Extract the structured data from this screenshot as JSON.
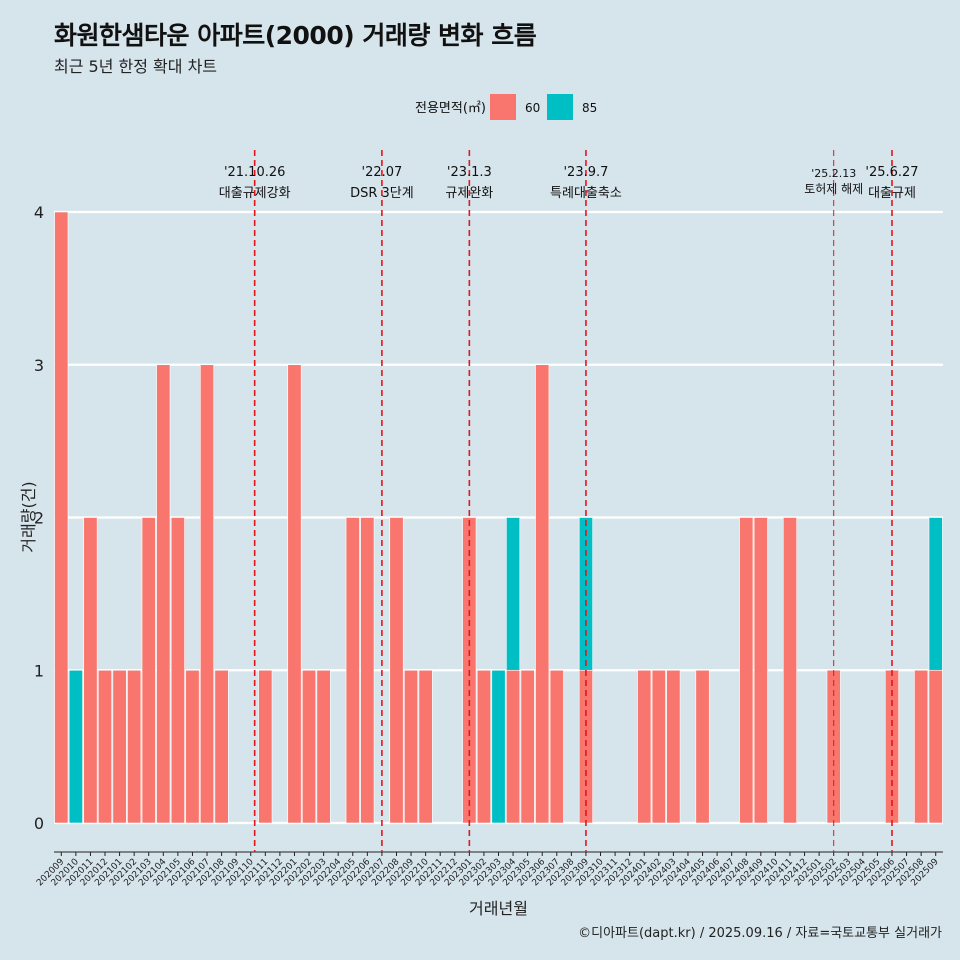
{
  "title": "화원한샘타운 아파트(2000) 거래량 변화 흐름",
  "subtitle": "최근 5년 한정 확대 차트",
  "caption": "©디아파트(dapt.kr) / 2025.09.16 / 자료=국토교통부 실거래가",
  "colors": {
    "background": "#d6e4ec",
    "series_60": "#f8766d",
    "series_85": "#00bfc4",
    "event_line": "#e8141a",
    "grid": "#ffffff"
  },
  "chart_data": {
    "type": "bar",
    "stacked": true,
    "xlabel": "거래년월",
    "ylabel": "거래량(건)",
    "ylim": [
      0,
      4
    ],
    "yticks": [
      0,
      1,
      2,
      3,
      4
    ],
    "grid": true,
    "legend": {
      "title": "전용면적(㎡)",
      "position": "top"
    },
    "categories": [
      "202009",
      "202010",
      "202011",
      "202012",
      "202101",
      "202102",
      "202103",
      "202104",
      "202105",
      "202106",
      "202107",
      "202108",
      "202109",
      "202110",
      "202111",
      "202112",
      "202201",
      "202202",
      "202203",
      "202204",
      "202205",
      "202206",
      "202207",
      "202208",
      "202209",
      "202210",
      "202211",
      "202212",
      "202301",
      "202302",
      "202303",
      "202304",
      "202305",
      "202306",
      "202307",
      "202308",
      "202309",
      "202310",
      "202311",
      "202312",
      "202401",
      "202402",
      "202403",
      "202404",
      "202405",
      "202406",
      "202407",
      "202408",
      "202409",
      "202410",
      "202411",
      "202412",
      "202501",
      "202502",
      "202503",
      "202504",
      "202505",
      "202506",
      "202507",
      "202508",
      "202509"
    ],
    "series": [
      {
        "name": "60",
        "values": [
          4,
          0,
          2,
          1,
          1,
          1,
          2,
          3,
          2,
          1,
          3,
          1,
          0,
          0,
          1,
          0,
          3,
          1,
          1,
          0,
          2,
          2,
          0,
          2,
          1,
          1,
          0,
          0,
          2,
          1,
          0,
          1,
          1,
          3,
          1,
          0,
          1,
          0,
          0,
          0,
          1,
          1,
          1,
          0,
          1,
          0,
          0,
          2,
          2,
          0,
          2,
          0,
          0,
          1,
          0,
          0,
          0,
          1,
          0,
          1,
          1
        ]
      },
      {
        "name": "85",
        "values": [
          0,
          1,
          0,
          0,
          0,
          0,
          0,
          0,
          0,
          0,
          0,
          0,
          0,
          0,
          0,
          0,
          0,
          0,
          0,
          0,
          0,
          0,
          0,
          0,
          0,
          0,
          0,
          0,
          0,
          0,
          1,
          1,
          0,
          0,
          0,
          0,
          1,
          0,
          0,
          0,
          0,
          0,
          0,
          0,
          0,
          0,
          0,
          0,
          0,
          0,
          0,
          0,
          0,
          0,
          0,
          0,
          0,
          0,
          0,
          0,
          1
        ]
      }
    ],
    "annotations": [
      {
        "date_label": "'21.10.26",
        "event": "대출규제강화",
        "category": "202110",
        "offset": 0.27
      },
      {
        "date_label": "'22.07",
        "event": "DSR 3단계",
        "category": "202207",
        "offset": 0.0
      },
      {
        "date_label": "'23.1.3",
        "event": "규제완화",
        "category": "202301",
        "offset": 0.0
      },
      {
        "date_label": "'23.9.7",
        "event": "특례대출축소",
        "category": "202309",
        "offset": 0.0
      },
      {
        "date_label": "'25.2.13",
        "event": "토허제 해제",
        "category": "202502",
        "offset": 0.0,
        "style": "thin"
      },
      {
        "date_label": "'25.6.27",
        "event": "대출규제",
        "category": "202506",
        "offset": 0.0
      }
    ]
  }
}
